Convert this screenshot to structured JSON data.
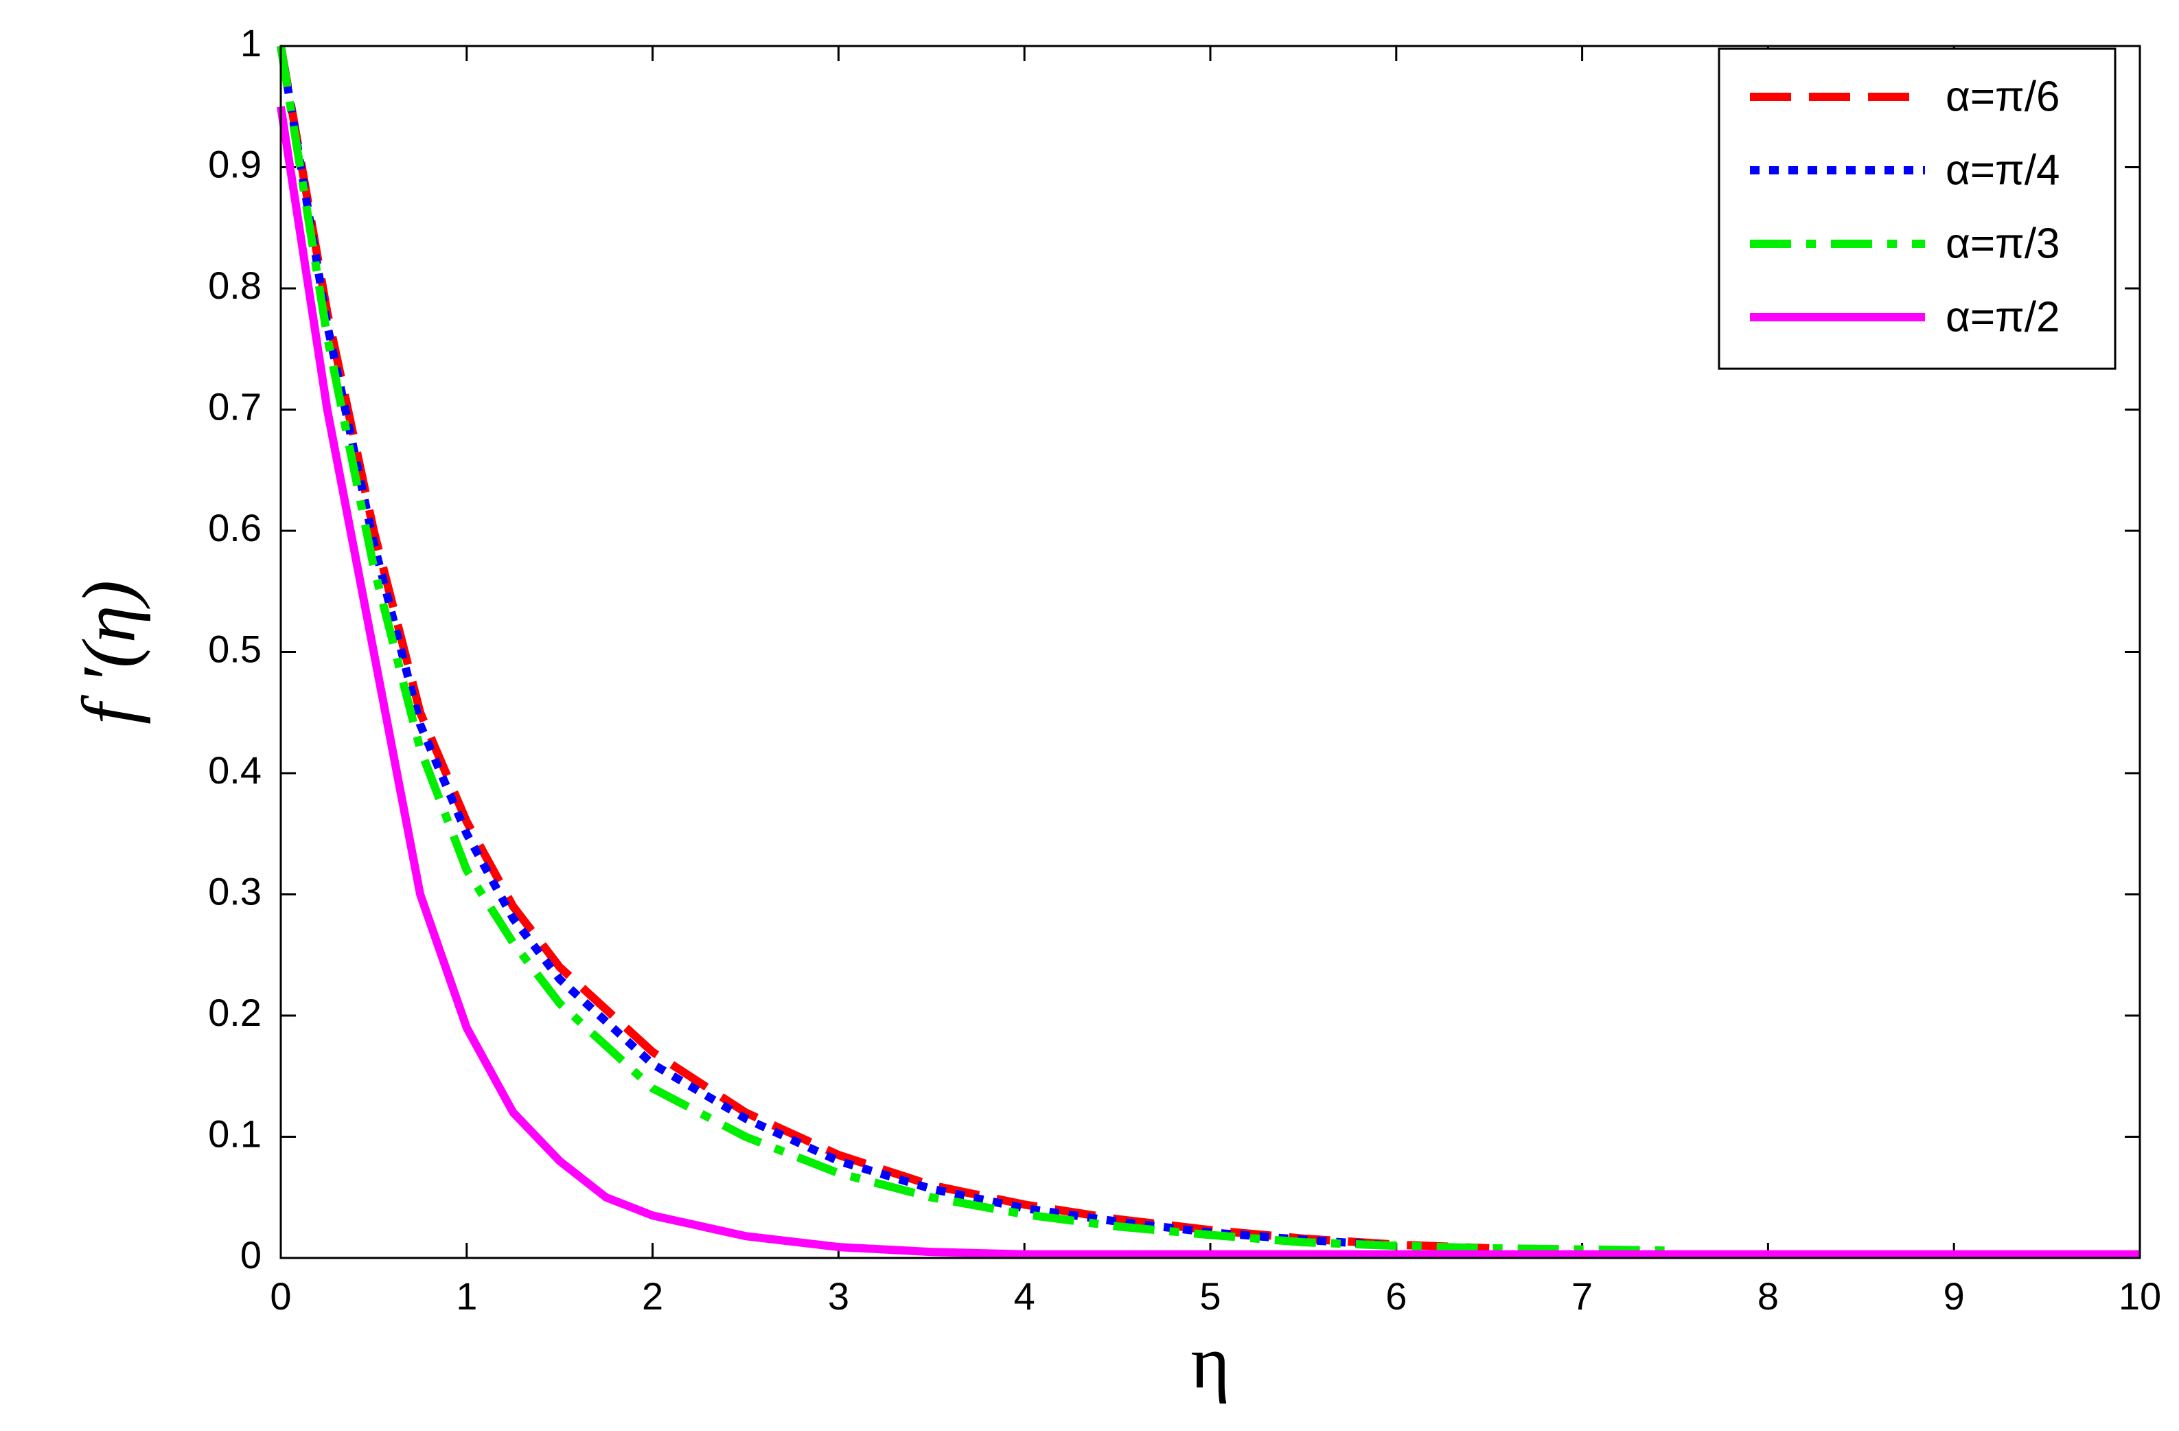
{
  "chart_data": {
    "type": "line",
    "xlabel": "η",
    "ylabel": "f ′(η)",
    "xlim": [
      0,
      10
    ],
    "ylim": [
      0,
      1
    ],
    "xticks": [
      0,
      1,
      2,
      3,
      4,
      5,
      6,
      7,
      8,
      9,
      10
    ],
    "yticks": [
      0,
      0.1,
      0.2,
      0.3,
      0.4,
      0.5,
      0.6,
      0.7,
      0.8,
      0.9,
      1
    ],
    "legend": "upper right",
    "series": [
      {
        "name": "α=π/6",
        "color": "#ff0000",
        "style": "dashed",
        "x": [
          0,
          0.25,
          0.5,
          0.75,
          1,
          1.25,
          1.5,
          2,
          2.5,
          3,
          3.5,
          4,
          4.5,
          5,
          5.5,
          6,
          6.5
        ],
        "values": [
          1,
          0.78,
          0.6,
          0.45,
          0.36,
          0.29,
          0.24,
          0.17,
          0.12,
          0.085,
          0.06,
          0.044,
          0.032,
          0.023,
          0.016,
          0.011,
          0.008
        ]
      },
      {
        "name": "α=π/4",
        "color": "#0000ff",
        "style": "dotted",
        "x": [
          0,
          0.25,
          0.5,
          0.75,
          1,
          1.25,
          1.5,
          2,
          2.5,
          3,
          3.5,
          4,
          4.5,
          5,
          5.5,
          6
        ],
        "values": [
          1,
          0.77,
          0.59,
          0.44,
          0.35,
          0.28,
          0.23,
          0.16,
          0.115,
          0.08,
          0.057,
          0.041,
          0.03,
          0.021,
          0.015,
          0.01
        ]
      },
      {
        "name": "α=π/3",
        "color": "#00ee00",
        "style": "dashdot",
        "x": [
          0,
          0.25,
          0.5,
          0.75,
          1,
          1.25,
          1.5,
          2,
          2.5,
          3,
          3.5,
          4,
          4.5,
          5,
          5.5,
          6,
          6.5,
          7,
          7.5
        ],
        "values": [
          1,
          0.76,
          0.57,
          0.42,
          0.32,
          0.26,
          0.21,
          0.14,
          0.1,
          0.07,
          0.05,
          0.036,
          0.026,
          0.019,
          0.013,
          0.01,
          0.008,
          0.007,
          0.006
        ]
      },
      {
        "name": "α=π/2",
        "color": "#ff00ff",
        "style": "solid",
        "x": [
          0,
          0.25,
          0.5,
          0.75,
          1,
          1.25,
          1.5,
          1.75,
          2,
          2.5,
          3,
          3.5,
          4,
          5,
          6,
          7,
          8,
          9,
          10
        ],
        "values": [
          0.95,
          0.7,
          0.5,
          0.3,
          0.19,
          0.12,
          0.08,
          0.05,
          0.035,
          0.018,
          0.009,
          0.005,
          0.003,
          0.003,
          0.003,
          0.003,
          0.003,
          0.003,
          0.003
        ]
      }
    ]
  }
}
